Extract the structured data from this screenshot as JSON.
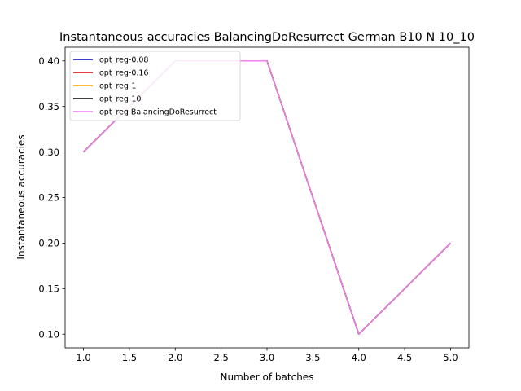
{
  "chart_data": {
    "type": "line",
    "title": "Instantaneous accuracies BalancingDoResurrect German B10 N 10_10",
    "xlabel": "Number of batches",
    "ylabel": "Instantaneous accuracies",
    "xlim": [
      0.8,
      5.2
    ],
    "ylim": [
      0.085,
      0.415
    ],
    "xticks": [
      1.0,
      1.5,
      2.0,
      2.5,
      3.0,
      3.5,
      4.0,
      4.5,
      5.0
    ],
    "xtick_labels": [
      "1.0",
      "1.5",
      "2.0",
      "2.5",
      "3.0",
      "3.5",
      "4.0",
      "4.5",
      "5.0"
    ],
    "yticks": [
      0.1,
      0.15,
      0.2,
      0.25,
      0.3,
      0.35,
      0.4
    ],
    "ytick_labels": [
      "0.10",
      "0.15",
      "0.20",
      "0.25",
      "0.30",
      "0.35",
      "0.40"
    ],
    "grid": false,
    "legend_position": "top-left",
    "x": [
      1,
      2,
      3,
      4,
      5
    ],
    "series": [
      {
        "name": "opt_reg-0.08",
        "color": "#0000cc",
        "values": [
          0.3,
          0.4,
          0.4,
          0.1,
          0.2
        ]
      },
      {
        "name": "opt_reg-0.16",
        "color": "#dd0000",
        "values": [
          0.3,
          0.4,
          0.4,
          0.1,
          0.2
        ]
      },
      {
        "name": "opt_reg-1",
        "color": "#ffa500",
        "values": [
          0.3,
          0.4,
          0.4,
          0.1,
          0.2
        ]
      },
      {
        "name": "opt_reg-10",
        "color": "#000000",
        "values": [
          0.3,
          0.4,
          0.4,
          0.1,
          0.2
        ]
      },
      {
        "name": "opt_reg BalancingDoResurrect",
        "color": "#ee82ee",
        "values": [
          0.3,
          0.4,
          0.4,
          0.1,
          0.2
        ]
      }
    ]
  }
}
